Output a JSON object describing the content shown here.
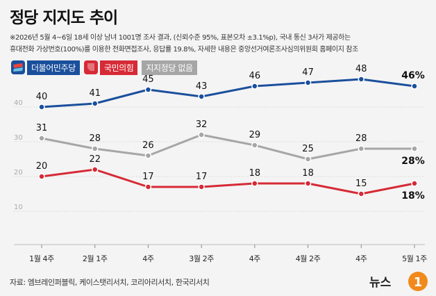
{
  "title": "정당 지지도 추이",
  "subtitle": "※2026년 5월 4~6일 18세 이상 남녀 1001명 조사 결과, (신뢰수준 95%, 표본오차 ±3.1%p), 국내 통신 3사가 제공하는\n휴대전화 가상번호(100%)를 이용한 전화면접조사, 응답률 19.8%, 자세한 내용은 중앙선거여론조사심의위원회 홈페이지 참조",
  "source": "자료: 엠브레인퍼블릭, 케이스탯리서치, 코리아리서치, 한국리서치",
  "logo": {
    "text": "뉴스",
    "mark": "1"
  },
  "chart_data": {
    "type": "line",
    "categories": [
      "1월 4주",
      "2월 1주",
      "4주",
      "3월 2주",
      "4주",
      "4월 2주",
      "4주",
      "5월 1주"
    ],
    "ylim": [
      10,
      50
    ],
    "yticks": [
      "40",
      "30",
      "20",
      "10"
    ],
    "grid": true,
    "series": [
      {
        "name": "더불어민주당",
        "color": "#1a4f9c",
        "values": [
          40,
          41,
          45,
          43,
          46,
          47,
          48,
          46
        ],
        "labels": [
          "40",
          "41",
          "45",
          "43",
          "46",
          "47",
          "48",
          "46"
        ]
      },
      {
        "name": "국민의힘",
        "color": "#d62a36",
        "values": [
          20,
          22,
          17,
          17,
          18,
          18,
          15,
          18
        ],
        "labels": [
          "20",
          "22",
          "17",
          "17",
          "18",
          "18",
          "15",
          "18"
        ]
      },
      {
        "name": "지지정당 없음",
        "color": "#a6a6a6",
        "values": [
          31,
          28,
          26,
          32,
          29,
          25,
          28,
          28
        ],
        "labels": [
          "31",
          "28",
          "26",
          "32",
          "29",
          "25",
          "28",
          "28"
        ]
      }
    ],
    "last_suffix": "%"
  }
}
